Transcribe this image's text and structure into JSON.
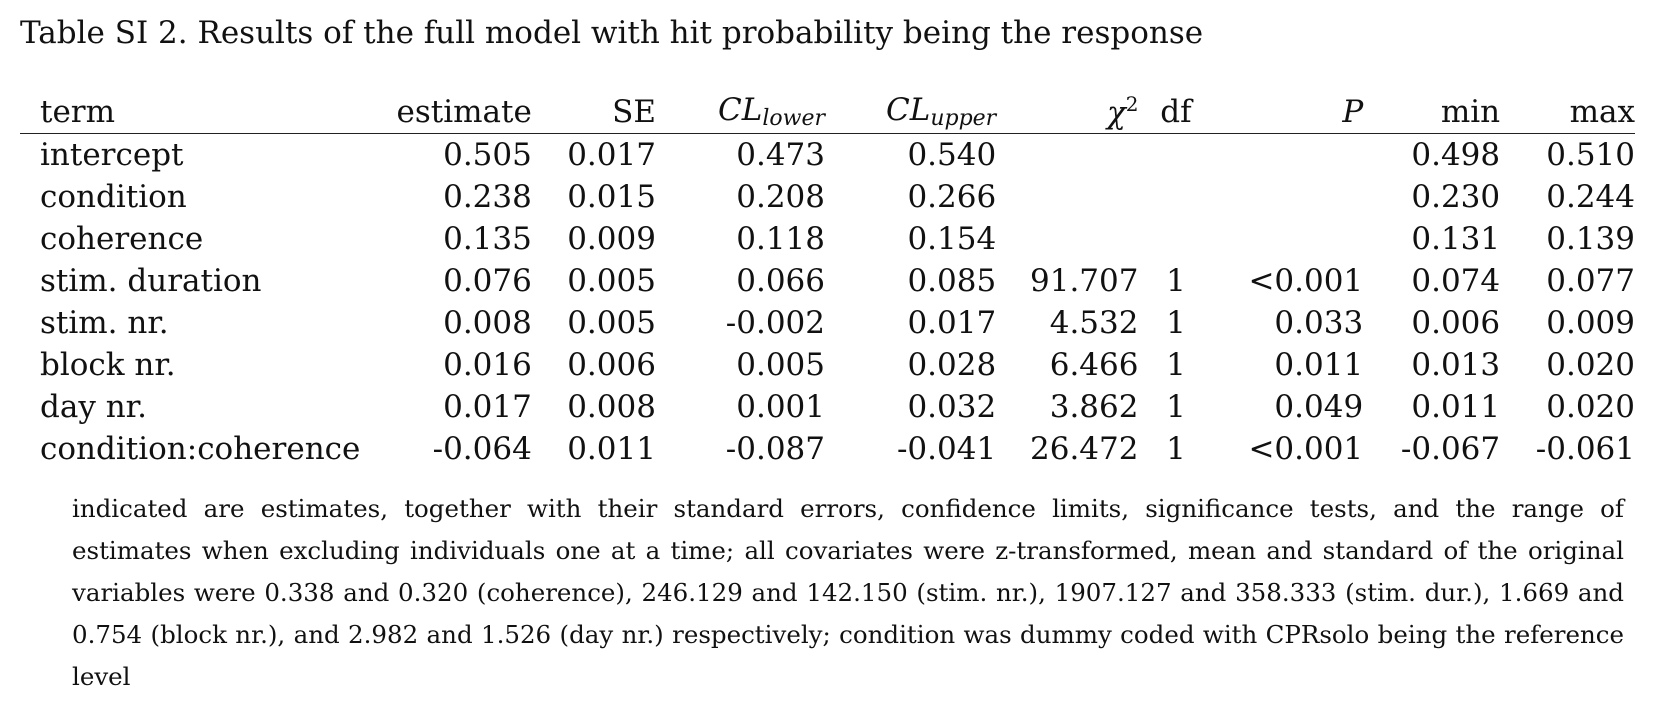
{
  "caption": "Table SI 2. Results of the full model with hit probability being the response",
  "table": {
    "headers": {
      "term": "term",
      "estimate": "estimate",
      "se": "SE",
      "cl_lower_base": "CL",
      "cl_lower_sub": "lower",
      "cl_upper_base": "CL",
      "cl_upper_sub": "upper",
      "chi_base": "χ",
      "chi_sup": "2",
      "df": "df",
      "p": "P",
      "min": "min",
      "max": "max"
    },
    "rows": [
      {
        "term": "intercept",
        "estimate": "0.505",
        "se": "0.017",
        "cl_lower": "0.473",
        "cl_upper": "0.540",
        "chi2": "",
        "df": "",
        "p": "",
        "min": "0.498",
        "max": "0.510"
      },
      {
        "term": "condition",
        "estimate": "0.238",
        "se": "0.015",
        "cl_lower": "0.208",
        "cl_upper": "0.266",
        "chi2": "",
        "df": "",
        "p": "",
        "min": "0.230",
        "max": "0.244"
      },
      {
        "term": "coherence",
        "estimate": "0.135",
        "se": "0.009",
        "cl_lower": "0.118",
        "cl_upper": "0.154",
        "chi2": "",
        "df": "",
        "p": "",
        "min": "0.131",
        "max": "0.139"
      },
      {
        "term": "stim. duration",
        "estimate": "0.076",
        "se": "0.005",
        "cl_lower": "0.066",
        "cl_upper": "0.085",
        "chi2": "91.707",
        "df": "1",
        "p": "<0.001",
        "min": "0.074",
        "max": "0.077"
      },
      {
        "term": "stim. nr.",
        "estimate": "0.008",
        "se": "0.005",
        "cl_lower": "-0.002",
        "cl_upper": "0.017",
        "chi2": "4.532",
        "df": "1",
        "p": "0.033",
        "min": "0.006",
        "max": "0.009"
      },
      {
        "term": "block nr.",
        "estimate": "0.016",
        "se": "0.006",
        "cl_lower": "0.005",
        "cl_upper": "0.028",
        "chi2": "6.466",
        "df": "1",
        "p": "0.011",
        "min": "0.013",
        "max": "0.020"
      },
      {
        "term": "day nr.",
        "estimate": "0.017",
        "se": "0.008",
        "cl_lower": "0.001",
        "cl_upper": "0.032",
        "chi2": "3.862",
        "df": "1",
        "p": "0.049",
        "min": "0.011",
        "max": "0.020"
      },
      {
        "term": "condition:coherence",
        "estimate": "-0.064",
        "se": "0.011",
        "cl_lower": "-0.087",
        "cl_upper": "-0.041",
        "chi2": "26.472",
        "df": "1",
        "p": "<0.001",
        "min": "-0.067",
        "max": "-0.061"
      }
    ]
  },
  "note": "indicated are estimates, together with their standard errors, confidence limits, significance tests, and the range of estimates when excluding individuals one at a time; all covariates were z-transformed, mean and standard of the original variables were 0.338 and 0.320 (coherence), 246.129 and 142.150 (stim. nr.), 1907.127 and 358.333 (stim. dur.), 1.669 and 0.754 (block nr.), and 2.982 and 1.526 (day nr.)  respectively; condition was dummy coded with CPRsolo being the reference level"
}
